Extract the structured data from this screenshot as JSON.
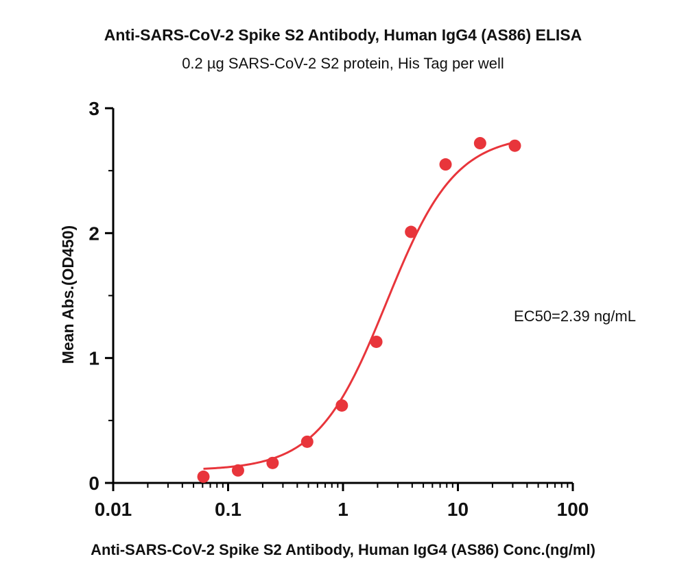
{
  "chart_data": {
    "type": "scatter",
    "title": "Anti-SARS-CoV-2 Spike S2 Antibody, Human IgG4 (AS86) ELISA",
    "subtitle": "0.2 µg SARS-CoV-2 S2 protein, His Tag per well",
    "xlabel": "Anti-SARS-CoV-2 Spike S2 Antibody, Human IgG4 (AS86) Conc.(ng/ml)",
    "ylabel": "Mean Abs.(OD450)",
    "xscale": "log",
    "xlim": [
      0.01,
      100
    ],
    "ylim": [
      0,
      3
    ],
    "xticks": [
      "0.01",
      "0.1",
      "1",
      "10",
      "100"
    ],
    "yticks": [
      "0",
      "1",
      "2",
      "3"
    ],
    "annotation": "EC50=2.39 ng/mL",
    "series": [
      {
        "x": [
          0.061,
          0.122,
          0.244,
          0.488,
          0.977,
          1.95,
          3.91,
          7.81,
          15.6,
          31.3
        ],
        "values": [
          0.05,
          0.1,
          0.16,
          0.33,
          0.62,
          1.13,
          2.01,
          2.55,
          2.72,
          2.7
        ],
        "color": "#e8353b"
      }
    ],
    "fit": {
      "type": "4PL",
      "bottom": 0.1,
      "top": 2.79,
      "ec50": 2.39,
      "hill": 1.45,
      "color": "#e8353b"
    },
    "grid": false
  }
}
